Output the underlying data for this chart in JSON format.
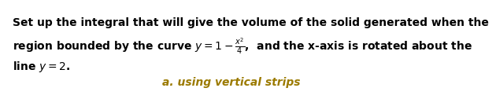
{
  "line1": "Set up the integral that will give the volume of the solid generated when the",
  "line2": "region bounded by the curve $y = 1 - \\frac{x^2}{4}$,  and the x-axis is rotated about the",
  "line3": "line $y = 2$.",
  "line4": "a. using vertical strips",
  "text_color": "#000000",
  "highlight_color": "#9B7A00",
  "bg_color": "#ffffff",
  "font_size": 10.0,
  "font_size_sub": 10.0
}
